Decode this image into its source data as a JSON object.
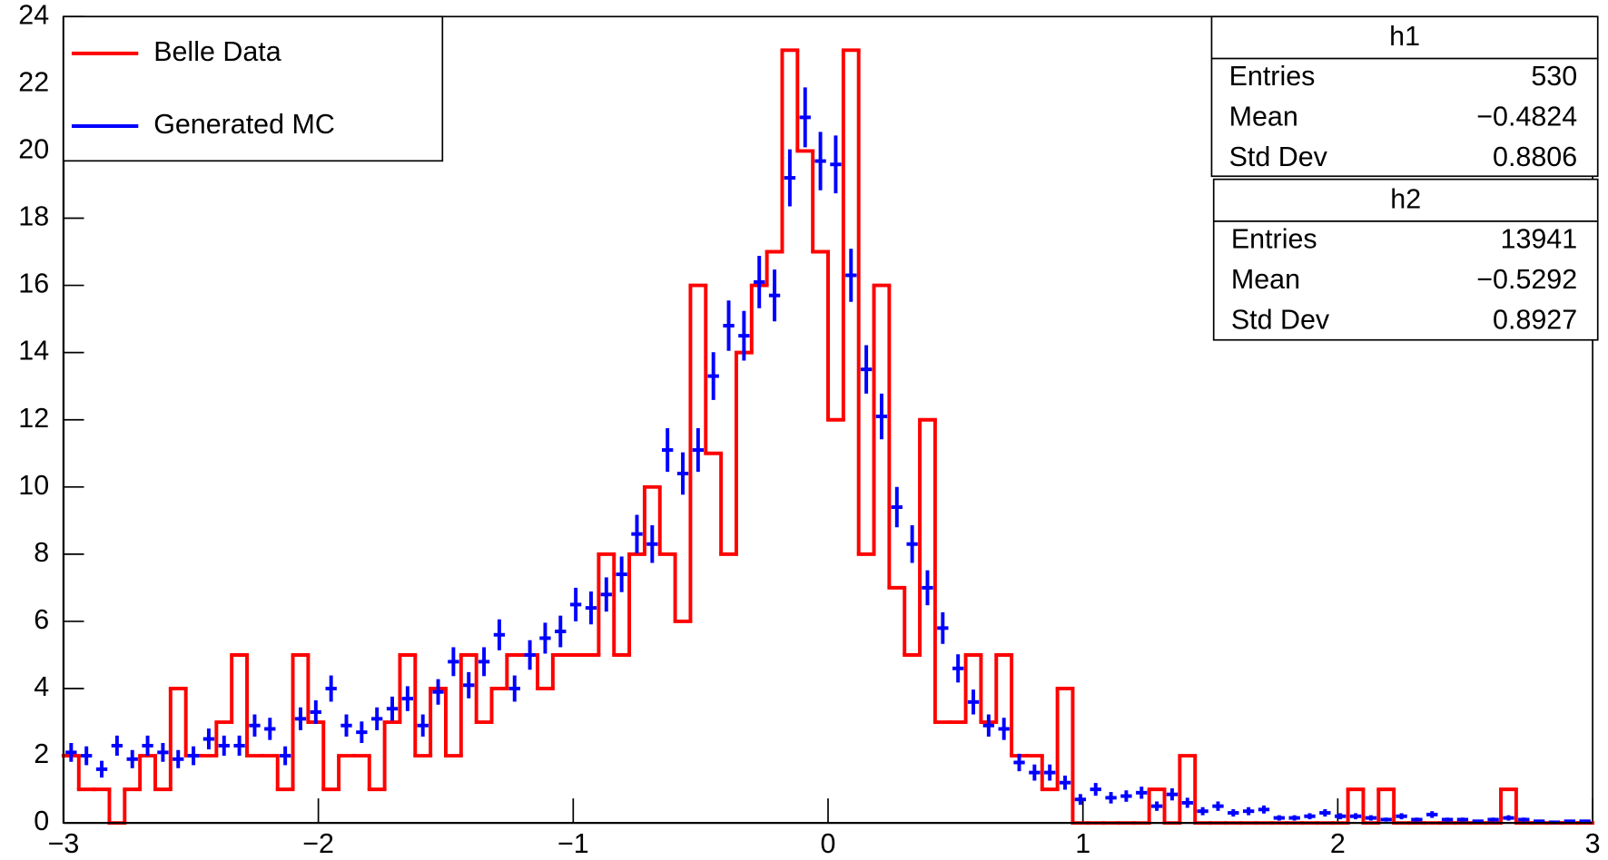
{
  "chart_data": {
    "type": "histogram",
    "bins": [
      -3,
      -2.94,
      -2.88,
      -2.82,
      -2.76,
      -2.7,
      -2.64,
      -2.58,
      -2.52,
      -2.46,
      -2.4,
      -2.34,
      -2.28,
      -2.22,
      -2.16,
      -2.1,
      -2.04,
      -1.98,
      -1.92,
      -1.86,
      -1.8,
      -1.74,
      -1.68,
      -1.62,
      -1.56,
      -1.5,
      -1.44,
      -1.38,
      -1.32,
      -1.26,
      -1.2,
      -1.14,
      -1.08,
      -1.02,
      -0.96,
      -0.9,
      -0.84,
      -0.78,
      -0.72,
      -0.66,
      -0.6,
      -0.54,
      -0.48,
      -0.42,
      -0.36,
      -0.3,
      -0.24,
      -0.18,
      -0.12,
      -0.06,
      0,
      0.06,
      0.12,
      0.18,
      0.24,
      0.3,
      0.36,
      0.42,
      0.48,
      0.54,
      0.6,
      0.66,
      0.72,
      0.78,
      0.84,
      0.9,
      0.96,
      1.02,
      1.08,
      1.14,
      1.2,
      1.26,
      1.32,
      1.38,
      1.44,
      1.5,
      1.56,
      1.62,
      1.68,
      1.74,
      1.8,
      1.86,
      1.92,
      1.98,
      2.04,
      2.1,
      2.16,
      2.22,
      2.28,
      2.34,
      2.4,
      2.46,
      2.52,
      2.58,
      2.64,
      2.7,
      2.76,
      2.82,
      2.88,
      2.94,
      3
    ],
    "series": [
      {
        "name": "Belle Data",
        "color": "#ff0000",
        "style": "step",
        "values": [
          2,
          1,
          1,
          0,
          1,
          2,
          1,
          4,
          2,
          2,
          3,
          5,
          2,
          2,
          1,
          5,
          3,
          1,
          2,
          2,
          1,
          3,
          5,
          2,
          4,
          2,
          5,
          3,
          4,
          5,
          5,
          4,
          5,
          5,
          5,
          8,
          5,
          8,
          10,
          8,
          6,
          16,
          11,
          8,
          14,
          16,
          17,
          23,
          20,
          17,
          12,
          23,
          8,
          16,
          7,
          5,
          12,
          3,
          3,
          5,
          3,
          5,
          2,
          2,
          1,
          4,
          0,
          0,
          0,
          0,
          0,
          1,
          0,
          2,
          0,
          0,
          0,
          0,
          0,
          0,
          0,
          0,
          0,
          0,
          1,
          0,
          1,
          0,
          0,
          0,
          0,
          0,
          0,
          0,
          1,
          0,
          0,
          0,
          0,
          0
        ]
      },
      {
        "name": "Generated MC",
        "color": "#0000ff",
        "style": "errorbar",
        "values": [
          2.1,
          2.0,
          1.6,
          2.3,
          1.9,
          2.3,
          2.1,
          1.9,
          2.0,
          2.5,
          2.3,
          2.3,
          2.9,
          2.8,
          2.0,
          3.1,
          3.3,
          4.0,
          2.9,
          2.7,
          3.1,
          3.4,
          3.7,
          2.9,
          3.9,
          4.8,
          4.1,
          4.8,
          5.6,
          4.0,
          5.0,
          5.5,
          5.7,
          6.5,
          6.4,
          6.8,
          7.4,
          8.6,
          8.3,
          11.1,
          10.4,
          11.1,
          13.3,
          14.8,
          14.5,
          16.1,
          15.7,
          19.2,
          21.0,
          19.7,
          19.6,
          16.3,
          13.5,
          12.1,
          9.4,
          8.3,
          7.0,
          5.8,
          4.6,
          3.6,
          2.9,
          2.8,
          1.8,
          1.5,
          1.5,
          1.2,
          0.7,
          1.0,
          0.75,
          0.8,
          0.9,
          0.5,
          0.85,
          0.6,
          0.35,
          0.5,
          0.3,
          0.35,
          0.4,
          0.15,
          0.15,
          0.2,
          0.3,
          0.2,
          0.2,
          0.15,
          0.1,
          0.2,
          0.1,
          0.25,
          0.1,
          0.1,
          0.05,
          0.1,
          0.15,
          0.1,
          0.05,
          0.02,
          0.05,
          0.05
        ],
        "errors": [
          0.28,
          0.28,
          0.25,
          0.3,
          0.27,
          0.3,
          0.28,
          0.27,
          0.28,
          0.31,
          0.3,
          0.3,
          0.33,
          0.33,
          0.28,
          0.34,
          0.35,
          0.39,
          0.33,
          0.32,
          0.34,
          0.36,
          0.37,
          0.33,
          0.38,
          0.43,
          0.39,
          0.43,
          0.46,
          0.39,
          0.44,
          0.46,
          0.47,
          0.5,
          0.49,
          0.51,
          0.53,
          0.57,
          0.56,
          0.65,
          0.63,
          0.65,
          0.71,
          0.75,
          0.74,
          0.78,
          0.77,
          0.85,
          0.89,
          0.87,
          0.86,
          0.79,
          0.72,
          0.68,
          0.6,
          0.56,
          0.52,
          0.47,
          0.42,
          0.37,
          0.33,
          0.33,
          0.26,
          0.24,
          0.24,
          0.21,
          0.16,
          0.19,
          0.17,
          0.17,
          0.18,
          0.14,
          0.18,
          0.15,
          0.12,
          0.14,
          0.11,
          0.12,
          0.12,
          0.08,
          0.08,
          0.09,
          0.11,
          0.09,
          0.09,
          0.08,
          0.06,
          0.09,
          0.06,
          0.1,
          0.06,
          0.06,
          0.04,
          0.06,
          0.08,
          0.06,
          0.04,
          0.03,
          0.04,
          0.04
        ]
      }
    ],
    "xlim": [
      -3,
      3
    ],
    "xticks": [
      {
        "value": -3,
        "label": "−3"
      },
      {
        "value": -2,
        "label": "−2"
      },
      {
        "value": -1,
        "label": "−1"
      },
      0,
      1,
      2,
      3
    ],
    "ylim": [
      0,
      24
    ],
    "yticks": [
      0,
      2,
      4,
      6,
      8,
      10,
      12,
      14,
      16,
      18,
      20,
      22,
      24
    ],
    "legend": "top-left",
    "stats": [
      {
        "title": "h1",
        "rows": [
          [
            "Entries",
            "530"
          ],
          [
            "Mean",
            "−0.4824"
          ],
          [
            "Std Dev",
            "0.8806"
          ]
        ]
      },
      {
        "title": "h2",
        "rows": [
          [
            "Entries",
            "13941"
          ],
          [
            "Mean",
            "−0.5292"
          ],
          [
            "Std Dev",
            "0.8927"
          ]
        ]
      }
    ]
  }
}
